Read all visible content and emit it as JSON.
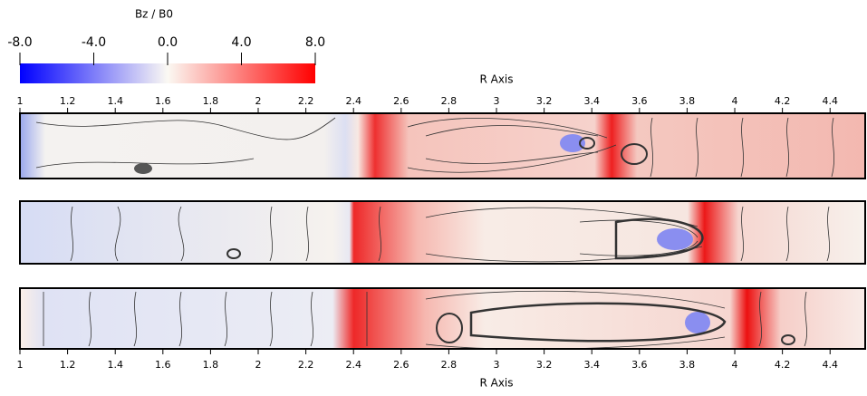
{
  "chart_data": {
    "type": "field",
    "colorbar": {
      "title": "Bz / B0",
      "clim": [
        -8,
        8
      ],
      "ticks": [
        {
          "value": -8,
          "label": "-8.0"
        },
        {
          "value": -4,
          "label": "-4.0"
        },
        {
          "value": 0,
          "label": "0.0"
        },
        {
          "value": 4,
          "label": "4.0"
        },
        {
          "value": 8,
          "label": "8.0"
        }
      ]
    },
    "xlabel": "R Axis",
    "xlim": [
      1,
      4.555
    ],
    "xticks": [
      1,
      1.2,
      1.4,
      1.6,
      1.8,
      2,
      2.2,
      2.4,
      2.6,
      2.8,
      3,
      3.2,
      3.4,
      3.6,
      3.8,
      4,
      4.2,
      4.4
    ]
  }
}
